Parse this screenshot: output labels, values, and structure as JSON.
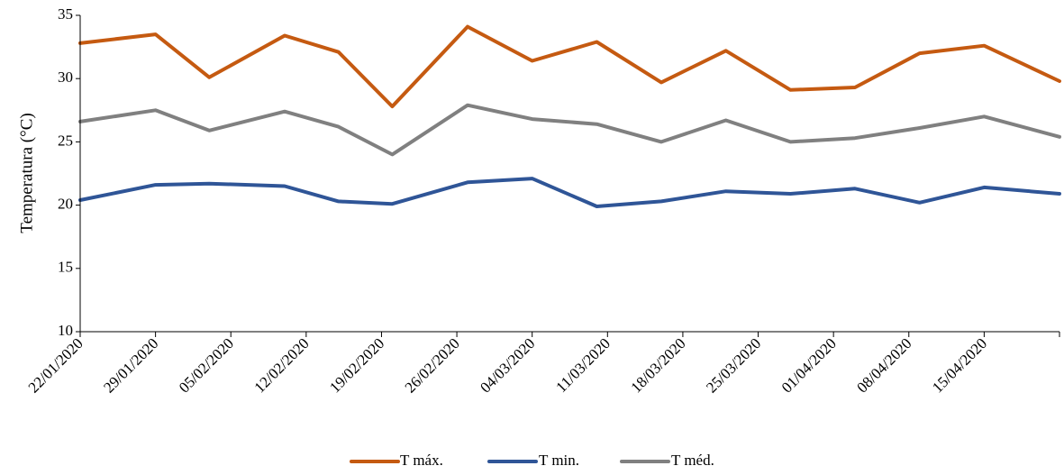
{
  "chart_data": {
    "type": "line",
    "title": "",
    "xlabel": "",
    "ylabel": "Temperatura (°C)",
    "ylim": [
      10,
      35
    ],
    "yticks": [
      10,
      15,
      20,
      25,
      30,
      35
    ],
    "x_dates": [
      "2020-01-22",
      "2020-01-29",
      "2020-02-05",
      "2020-02-12",
      "2020-02-19",
      "2020-02-26",
      "2020-03-04",
      "2020-03-11",
      "2020-03-18",
      "2020-03-25",
      "2020-04-01",
      "2020-04-08",
      "2020-04-15",
      "2020-04-22"
    ],
    "xtick_labels": [
      "22/01/2020",
      "29/01/2020",
      "05/02/2020",
      "12/02/2020",
      "19/02/2020",
      "26/02/2020",
      "04/03/2020",
      "11/03/2020",
      "18/03/2020",
      "25/03/2020",
      "01/04/2020",
      "08/04/2020",
      "15/04/2020"
    ],
    "x": [
      "2020-01-22",
      "2020-01-29",
      "2020-02-03",
      "2020-02-10",
      "2020-02-15",
      "2020-02-20",
      "2020-02-27",
      "2020-03-04",
      "2020-03-10",
      "2020-03-16",
      "2020-03-22",
      "2020-03-28",
      "2020-04-03",
      "2020-04-09",
      "2020-04-15",
      "2020-04-22"
    ],
    "series": [
      {
        "name": "T máx.",
        "color": "#C55A11",
        "values": [
          32.8,
          33.5,
          30.1,
          33.4,
          32.1,
          27.8,
          34.1,
          31.4,
          32.9,
          29.7,
          32.2,
          29.1,
          29.3,
          32.0,
          32.6,
          29.8
        ]
      },
      {
        "name": "T min.",
        "color": "#2F5597",
        "values": [
          20.4,
          21.6,
          21.7,
          21.5,
          20.3,
          20.1,
          21.8,
          22.1,
          19.9,
          20.3,
          21.1,
          20.9,
          21.3,
          20.2,
          21.4,
          20.9
        ]
      },
      {
        "name": "T méd.",
        "color": "#808080",
        "values": [
          26.6,
          27.5,
          25.9,
          27.4,
          26.2,
          24.0,
          27.9,
          26.8,
          26.4,
          25.0,
          26.7,
          25.0,
          25.3,
          26.1,
          27.0,
          25.4
        ]
      }
    ],
    "grid": false,
    "legend_position": "bottom-center"
  }
}
